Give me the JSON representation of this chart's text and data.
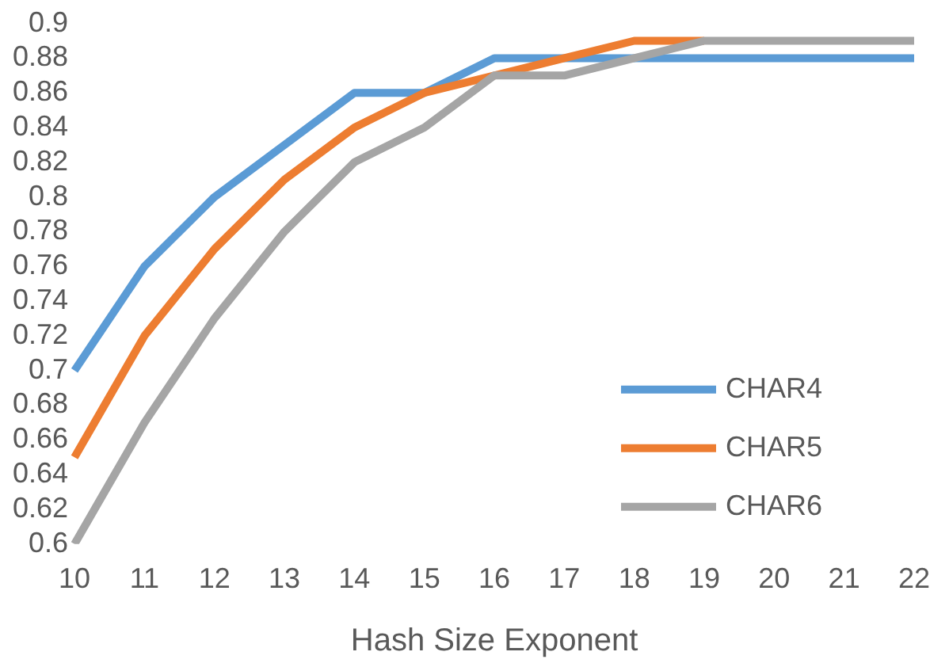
{
  "chart_data": {
    "type": "line",
    "xlabel": "Hash Size Exponent",
    "categories": [
      "10",
      "11",
      "12",
      "13",
      "14",
      "15",
      "16",
      "17",
      "18",
      "19",
      "20",
      "21",
      "22"
    ],
    "series": [
      {
        "name": "CHAR4",
        "color": "#5b9bd5",
        "values": [
          0.7,
          0.76,
          0.8,
          0.83,
          0.86,
          0.86,
          0.88,
          0.88,
          0.88,
          0.88,
          0.88,
          0.88,
          0.88
        ]
      },
      {
        "name": "CHAR5",
        "color": "#ed7d31",
        "values": [
          0.65,
          0.72,
          0.77,
          0.81,
          0.84,
          0.86,
          0.87,
          0.88,
          0.89,
          0.89,
          null,
          null,
          null
        ]
      },
      {
        "name": "CHAR6",
        "color": "#a5a5a5",
        "values": [
          0.6,
          0.67,
          0.73,
          0.78,
          0.82,
          0.84,
          0.87,
          0.87,
          0.88,
          0.89,
          0.89,
          0.89,
          0.89
        ]
      }
    ],
    "ylim": [
      0.6,
      0.9
    ],
    "yticks": [
      0.6,
      0.62,
      0.64,
      0.66,
      0.68,
      0.7,
      0.72,
      0.74,
      0.76,
      0.78,
      0.8,
      0.82,
      0.84,
      0.86,
      0.88,
      0.9
    ],
    "grid": false,
    "legend": "bottom right",
    "marker": "none",
    "line_style": "solid"
  }
}
